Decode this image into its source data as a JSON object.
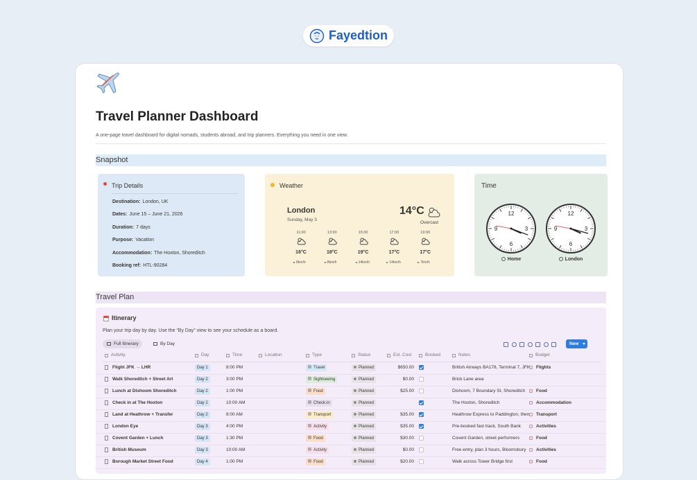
{
  "brand": "Fayedtion",
  "page": {
    "title": "Travel Planner Dashboard",
    "description": "A one-page travel dashboard for digital nomads, students abroad, and trip planners. Everything you need in one view."
  },
  "snapshot": {
    "heading": "Snapshot",
    "trip_details": {
      "title": "Trip Details",
      "fields": [
        {
          "label": "Destination:",
          "value": "London, UK"
        },
        {
          "label": "Dates:",
          "value": "June 15 – June 21, 2026"
        },
        {
          "label": "Duration:",
          "value": "7 days"
        },
        {
          "label": "Purpose:",
          "value": "Vacation"
        },
        {
          "label": "Accommodation:",
          "value": "The Hoxton, Shoreditch"
        },
        {
          "label": "Booking ref:",
          "value": "HTL-90284"
        }
      ]
    },
    "weather": {
      "title": "Weather",
      "city": "London",
      "date": "Sunday, May 3",
      "temperature": "14°C",
      "condition": "Overcast",
      "hourly": [
        {
          "time": "11:00",
          "temp": "16°C",
          "wind": "8km/h"
        },
        {
          "time": "13:00",
          "temp": "18°C",
          "wind": "8km/h"
        },
        {
          "time": "15:00",
          "temp": "19°C",
          "wind": "14km/h"
        },
        {
          "time": "17:00",
          "temp": "17°C",
          "wind": "14km/h"
        },
        {
          "time": "19:00",
          "temp": "17°C",
          "wind": "7km/h"
        }
      ]
    },
    "time": {
      "title": "Time",
      "clock_numbers": [
        "12",
        "3",
        "6",
        "9"
      ],
      "clocks": [
        {
          "label": "Home"
        },
        {
          "label": "London"
        }
      ]
    }
  },
  "travel_plan": {
    "heading": "Travel Plan",
    "itinerary": {
      "title": "Itinerary",
      "description": "Plan your trip day by day. Use the “By Day” view to see your schedule as a board.",
      "tabs": [
        "Full Itinerary",
        "By Day"
      ],
      "new_button": "New",
      "columns": [
        "Activity",
        "Day",
        "Time",
        "Location",
        "Type",
        "Status",
        "Est. Cost",
        "Booked",
        "Notes",
        "Budget"
      ],
      "rows": [
        {
          "activity": "Flight JFK → LHR",
          "day": "Day 1",
          "time": "8:00 PM",
          "type": "Travel",
          "type_color": "#d6e8f7",
          "status": "Planned",
          "cost": "$650.00",
          "booked": true,
          "notes": "British Airways BA178, Terminal 7, JFK",
          "budget": "Flights"
        },
        {
          "activity": "Walk Shoreditch + Street Art",
          "day": "Day 2",
          "time": "3:00 PM",
          "type": "Sightseeing",
          "type_color": "#dbeddb",
          "status": "Planned",
          "cost": "$0.00",
          "booked": false,
          "notes": "Brick Lane area"
        },
        {
          "activity": "Lunch at Dishoom Shoreditch",
          "day": "Day 2",
          "time": "1:00 PM",
          "type": "Food",
          "type_color": "#fadec9",
          "status": "Planned",
          "cost": "$25.00",
          "booked": false,
          "notes": "Dishoom, 7 Boundary St, Shoreditch",
          "budget": "Food"
        },
        {
          "activity": "Check in at The Hoxton",
          "day": "Day 2",
          "time": "10:00 AM",
          "type": "Check-in",
          "type_color": "#e8deee",
          "status": "Planned",
          "booked": true,
          "notes": "The Hoxton, Shoreditch",
          "budget": "Accommodation"
        },
        {
          "activity": "Land at Heathrow + Transfer",
          "day": "Day 2",
          "time": "8:00 AM",
          "type": "Transport",
          "type_color": "#fdecc8",
          "status": "Planned",
          "cost": "$35.00",
          "booked": true,
          "notes": "Heathrow Express to Paddington, then",
          "budget": "Transport"
        },
        {
          "activity": "London Eye",
          "day": "Day 3",
          "time": "4:00 PM",
          "type": "Activity",
          "type_color": "#f5e0e9",
          "status": "Planned",
          "cost": "$35.00",
          "booked": true,
          "notes": "Pre-booked fast track, South Bank",
          "budget": "Activities"
        },
        {
          "activity": "Covent Garden + Lunch",
          "day": "Day 3",
          "time": "1:30 PM",
          "type": "Food",
          "type_color": "#fadec9",
          "status": "Planned",
          "cost": "$30.00",
          "booked": false,
          "notes": "Covent Garden, street performers",
          "budget": "Food"
        },
        {
          "activity": "British Museum",
          "day": "Day 3",
          "time": "10:00 AM",
          "type": "Activity",
          "type_color": "#f5e0e9",
          "status": "Planned",
          "cost": "$0.00",
          "booked": false,
          "notes": "Free entry, plan 3 hours, Bloomsbury",
          "budget": "Activities"
        },
        {
          "activity": "Borough Market Street Food",
          "day": "Day 4",
          "time": "1:00 PM",
          "type": "Food",
          "type_color": "#fadec9",
          "status": "Planned",
          "cost": "$20.00",
          "booked": false,
          "notes": "Walk across Tower Bridge first",
          "budget": "Food"
        }
      ]
    }
  }
}
